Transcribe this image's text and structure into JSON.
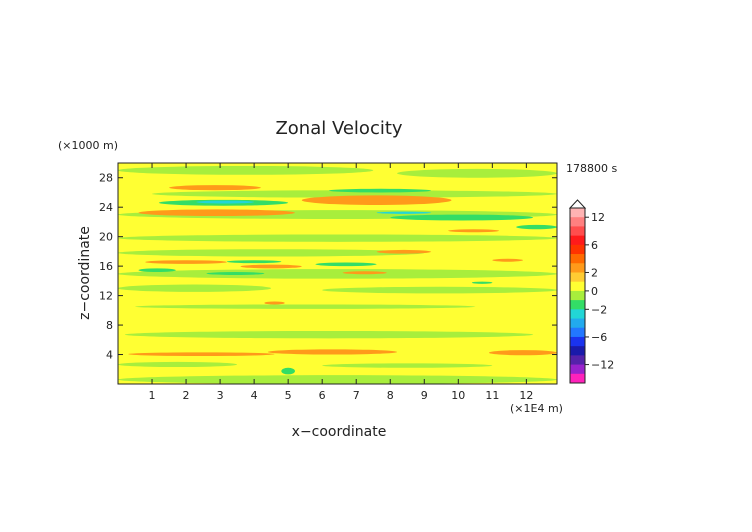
{
  "chart_data": {
    "type": "heatmap",
    "title": "Zonal Velocity",
    "xlabel": "x−coordinate",
    "ylabel": "z−coordinate",
    "x_unit": "(×1E4 m)",
    "y_unit": "(×1000 m)",
    "time_label": "178800 s",
    "xlim": [
      0,
      12.9
    ],
    "ylim": [
      0,
      30
    ],
    "x_ticks": [
      "1",
      "2",
      "3",
      "4",
      "5",
      "6",
      "7",
      "8",
      "9",
      "10",
      "11",
      "12"
    ],
    "y_ticks": [
      "4",
      "8",
      "12",
      "16",
      "20",
      "24",
      "28"
    ],
    "colorbar": {
      "tick_labels": [
        "12",
        "6",
        "2",
        "0",
        "−2",
        "−6",
        "−12"
      ],
      "tick_values": [
        12,
        6,
        2,
        0,
        -2,
        -6,
        -12
      ],
      "levels": [
        14,
        12,
        10,
        8,
        6,
        4,
        3,
        2,
        1,
        0,
        -1,
        -2,
        -3,
        -4,
        -6,
        -8,
        -10,
        -12,
        -14
      ],
      "colors": [
        "#ffb3b3",
        "#ff8080",
        "#ff4d4d",
        "#ff1a1a",
        "#ff3300",
        "#ff6a00",
        "#ff9a1a",
        "#ffcc33",
        "#ffff33",
        "#a8ee3c",
        "#33dd66",
        "#22d6d6",
        "#22aaee",
        "#2277ff",
        "#1a33ee",
        "#1a1aaa",
        "#5522aa",
        "#9922cc",
        "#ff22bb"
      ],
      "triangle_top": true
    },
    "background_value": 0.3,
    "features": [
      {
        "x0": 0.0,
        "x1": 12.9,
        "z0": 14.3,
        "z1": 15.6,
        "v": -0.5
      },
      {
        "x0": 0.0,
        "x1": 12.9,
        "z0": 19.3,
        "z1": 20.3,
        "v": -0.5
      },
      {
        "x0": 0.0,
        "x1": 12.9,
        "z0": 22.4,
        "z1": 23.6,
        "v": -0.5
      },
      {
        "x0": 0.0,
        "x1": 9.0,
        "z0": 17.3,
        "z1": 18.3,
        "v": -0.5
      },
      {
        "x0": 1.0,
        "x1": 12.9,
        "z0": 25.3,
        "z1": 26.3,
        "v": -0.5
      },
      {
        "x0": 0.2,
        "x1": 12.2,
        "z0": 6.2,
        "z1": 7.2,
        "v": -0.5
      },
      {
        "x0": 0.5,
        "x1": 10.5,
        "z0": 10.2,
        "z1": 10.8,
        "v": -0.5
      },
      {
        "x0": 6.0,
        "x1": 12.9,
        "z0": 12.3,
        "z1": 13.2,
        "v": -0.5
      },
      {
        "x0": 0.0,
        "x1": 4.5,
        "z0": 12.5,
        "z1": 13.5,
        "v": -0.5
      },
      {
        "x0": 0.0,
        "x1": 7.5,
        "z0": 28.4,
        "z1": 29.6,
        "v": -0.5
      },
      {
        "x0": 8.2,
        "x1": 12.9,
        "z0": 28.0,
        "z1": 29.2,
        "v": -0.5
      },
      {
        "x0": 0.0,
        "x1": 12.9,
        "z0": 0.0,
        "z1": 1.2,
        "v": -0.5
      },
      {
        "x0": 0.0,
        "x1": 3.5,
        "z0": 2.3,
        "z1": 3.0,
        "v": -0.5
      },
      {
        "x0": 6.0,
        "x1": 11.0,
        "z0": 2.2,
        "z1": 2.8,
        "v": -0.5
      },
      {
        "x0": 1.5,
        "x1": 4.2,
        "z0": 26.3,
        "z1": 27.0,
        "v": 2.5
      },
      {
        "x0": 0.6,
        "x1": 5.2,
        "z0": 22.8,
        "z1": 23.7,
        "v": 2.5
      },
      {
        "x0": 5.4,
        "x1": 9.8,
        "z0": 24.3,
        "z1": 25.6,
        "v": 2.5
      },
      {
        "x0": 0.8,
        "x1": 3.2,
        "z0": 16.3,
        "z1": 16.8,
        "v": 2.5
      },
      {
        "x0": 3.6,
        "x1": 5.4,
        "z0": 15.7,
        "z1": 16.2,
        "v": 2.5
      },
      {
        "x0": 7.6,
        "x1": 9.2,
        "z0": 17.7,
        "z1": 18.2,
        "v": 2.5
      },
      {
        "x0": 6.6,
        "x1": 7.9,
        "z0": 14.9,
        "z1": 15.3,
        "v": 2.5
      },
      {
        "x0": 11.0,
        "x1": 11.9,
        "z0": 16.6,
        "z1": 17.0,
        "v": 2.5
      },
      {
        "x0": 4.3,
        "x1": 4.9,
        "z0": 10.8,
        "z1": 11.2,
        "v": 2.5
      },
      {
        "x0": 0.3,
        "x1": 4.6,
        "z0": 3.8,
        "z1": 4.3,
        "v": 2.5
      },
      {
        "x0": 4.4,
        "x1": 8.2,
        "z0": 4.0,
        "z1": 4.7,
        "v": 2.5
      },
      {
        "x0": 10.9,
        "x1": 12.9,
        "z0": 3.9,
        "z1": 4.6,
        "v": 2.5
      },
      {
        "x0": 9.7,
        "x1": 11.2,
        "z0": 20.6,
        "z1": 21.0,
        "v": 2.5
      },
      {
        "x0": 1.2,
        "x1": 5.0,
        "z0": 24.2,
        "z1": 25.0,
        "v": -1.5
      },
      {
        "x0": 6.2,
        "x1": 9.2,
        "z0": 26.0,
        "z1": 26.5,
        "v": -1.5
      },
      {
        "x0": 8.0,
        "x1": 12.2,
        "z0": 22.2,
        "z1": 23.0,
        "v": -1.5
      },
      {
        "x0": 0.6,
        "x1": 1.7,
        "z0": 15.2,
        "z1": 15.7,
        "v": -1.5
      },
      {
        "x0": 3.2,
        "x1": 4.8,
        "z0": 16.4,
        "z1": 16.8,
        "v": -1.5
      },
      {
        "x0": 5.8,
        "x1": 7.6,
        "z0": 16.0,
        "z1": 16.5,
        "v": -1.5
      },
      {
        "x0": 2.6,
        "x1": 4.3,
        "z0": 14.8,
        "z1": 15.2,
        "v": -1.5
      },
      {
        "x0": 11.7,
        "x1": 12.9,
        "z0": 21.0,
        "z1": 21.6,
        "v": -1.5
      },
      {
        "x0": 4.8,
        "x1": 5.2,
        "z0": 1.3,
        "z1": 2.2,
        "v": -1.5
      },
      {
        "x0": 10.4,
        "x1": 11.0,
        "z0": 13.6,
        "z1": 13.9,
        "v": -1.5
      },
      {
        "x0": 2.3,
        "x1": 4.0,
        "z0": 24.5,
        "z1": 24.9,
        "v": -2.5
      },
      {
        "x0": 7.6,
        "x1": 9.2,
        "z0": 23.1,
        "z1": 23.4,
        "v": -2.5
      }
    ]
  }
}
